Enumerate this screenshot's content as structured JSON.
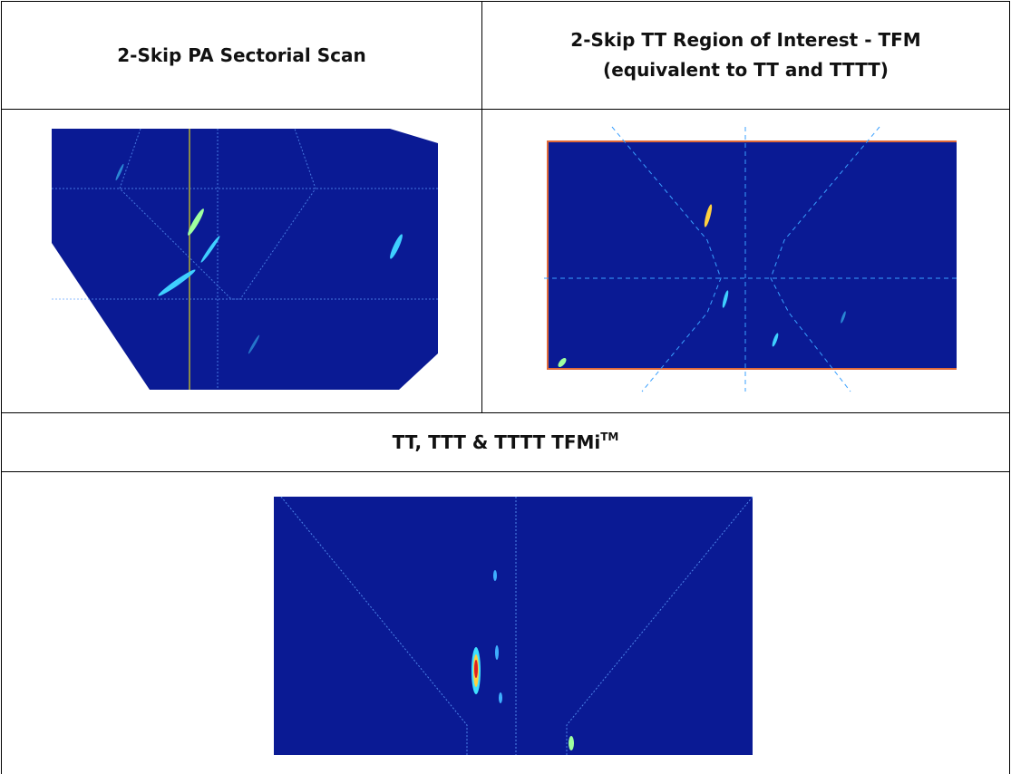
{
  "header": {
    "left": "2-Skip PA Sectorial Scan",
    "right_line1": "2-Skip TT Region of Interest - TFM",
    "right_line2": "(equivalent to TT and TTTT)"
  },
  "subheader": {
    "text": "TT, TTT & TTTT TFMi",
    "superscript": "TM"
  }
}
